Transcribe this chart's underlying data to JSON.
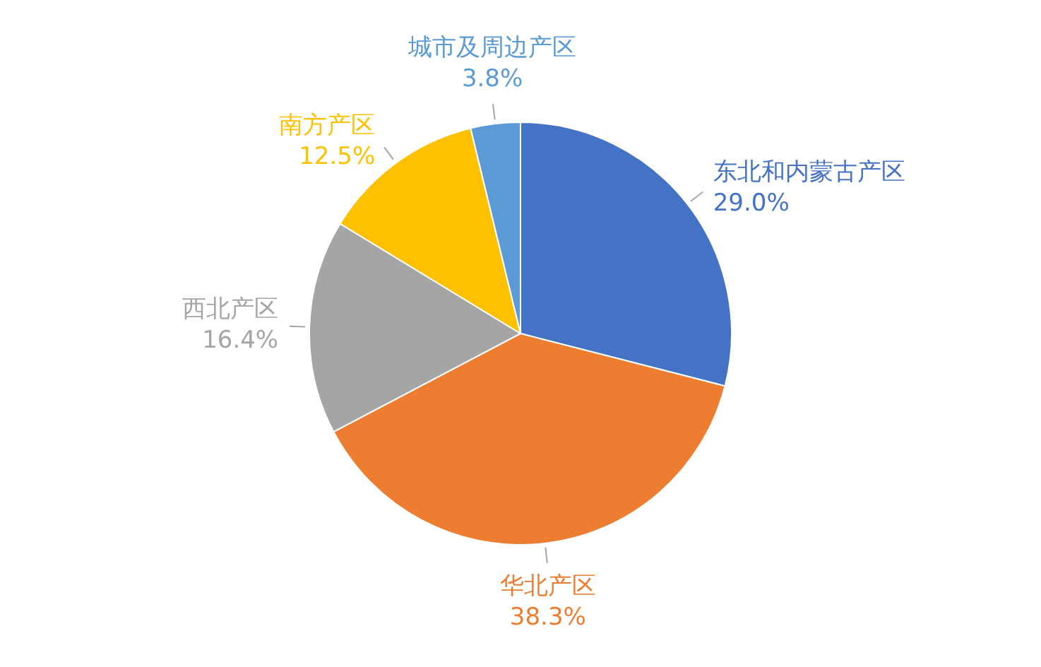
{
  "chart_data": {
    "type": "pie",
    "categories": [
      "东北和内蒙古产区",
      "华北产区",
      "西北产区",
      "南方产区",
      "城市及周边产区"
    ],
    "values": [
      29.0,
      38.3,
      16.4,
      12.5,
      3.8
    ],
    "colors": [
      "#4472c4",
      "#ed7d31",
      "#a5a5a5",
      "#ffc000",
      "#5b9bd5"
    ],
    "value_labels": [
      "29.0%",
      "38.3%",
      "16.4%",
      "12.5%",
      "3.8%"
    ],
    "legend": false
  }
}
